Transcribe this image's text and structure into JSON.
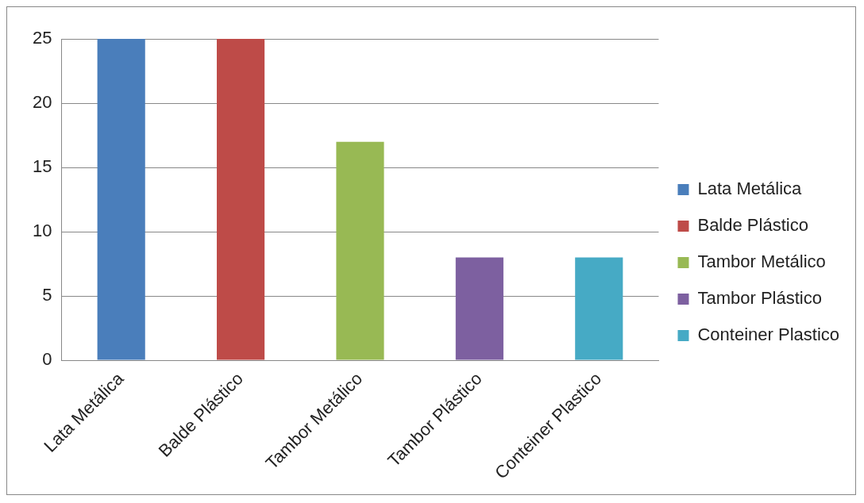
{
  "chart_data": {
    "type": "bar",
    "categories": [
      "Lata Metálica",
      "Balde Plástico",
      "Tambor Metálico",
      "Tambor Plástico",
      "Conteiner Plastico"
    ],
    "series": [
      {
        "name": "Lata Metálica",
        "color": "#4a7ebb",
        "values": [
          25,
          null,
          null,
          null,
          null
        ]
      },
      {
        "name": "Balde Plástico",
        "color": "#be4b48",
        "values": [
          null,
          25,
          null,
          null,
          null
        ]
      },
      {
        "name": "Tambor Metálico",
        "color": "#98b954",
        "values": [
          null,
          null,
          17,
          null,
          null
        ]
      },
      {
        "name": "Tambor Plástico",
        "color": "#7d60a0",
        "values": [
          null,
          null,
          null,
          8,
          null
        ]
      },
      {
        "name": "Conteiner Plastico",
        "color": "#46aac5",
        "values": [
          null,
          null,
          null,
          null,
          8
        ]
      }
    ],
    "ylim": [
      0,
      25
    ],
    "yticks": [
      0,
      5,
      10,
      15,
      20,
      25
    ],
    "grid": "y",
    "legend": "right"
  }
}
